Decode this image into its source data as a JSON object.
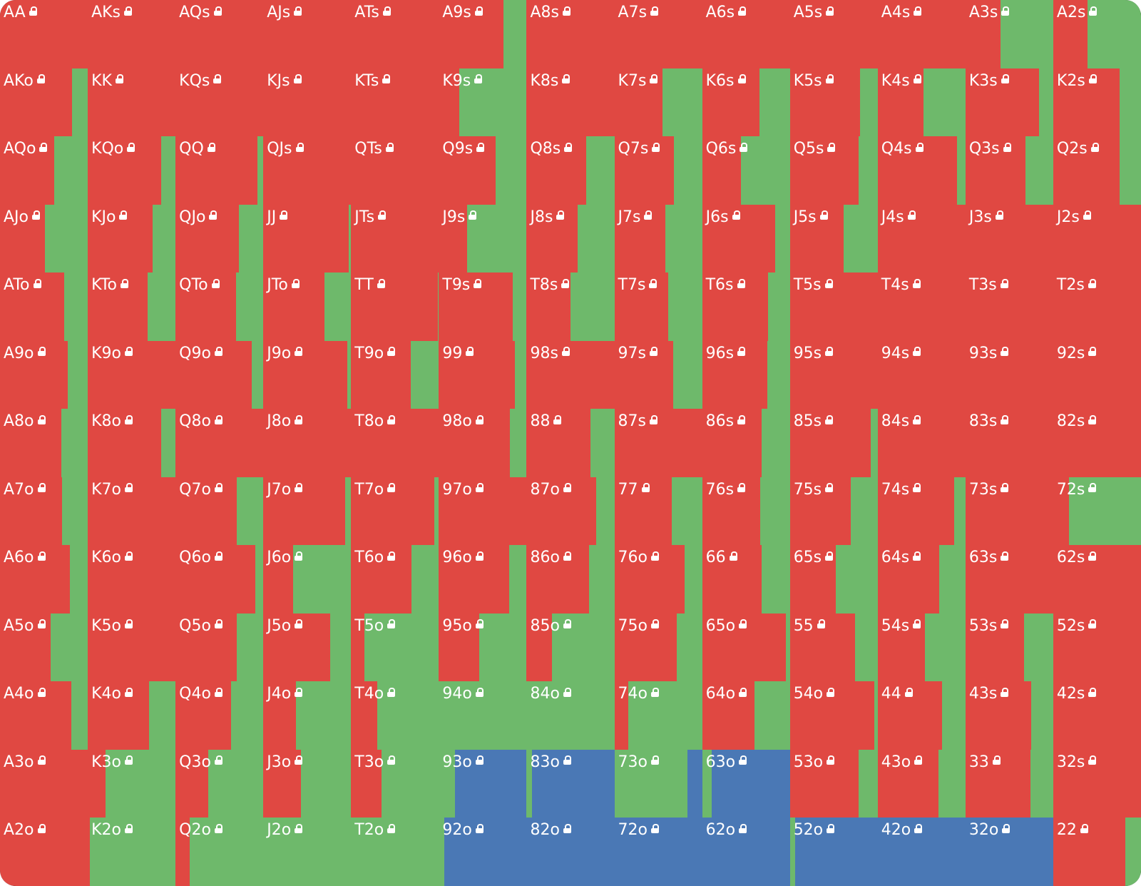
{
  "legend": {
    "action_colors": {
      "red": "#e04842",
      "green": "#6eb96b",
      "blue": "#4a78b5"
    }
  },
  "grid": {
    "cols": 13,
    "lock_icon": "lock-icon",
    "cells": [
      {
        "hand": "AA",
        "mix": [
          1,
          0,
          0
        ]
      },
      {
        "hand": "AKs",
        "mix": [
          1,
          0,
          0
        ]
      },
      {
        "hand": "AQs",
        "mix": [
          1,
          0,
          0
        ]
      },
      {
        "hand": "AJs",
        "mix": [
          1,
          0,
          0
        ]
      },
      {
        "hand": "ATs",
        "mix": [
          1,
          0,
          0
        ]
      },
      {
        "hand": "A9s",
        "mix": [
          0.74,
          0.26,
          0
        ]
      },
      {
        "hand": "A8s",
        "mix": [
          1,
          0,
          0
        ]
      },
      {
        "hand": "A7s",
        "mix": [
          1,
          0,
          0
        ]
      },
      {
        "hand": "A6s",
        "mix": [
          1,
          0,
          0
        ]
      },
      {
        "hand": "A5s",
        "mix": [
          1,
          0,
          0
        ]
      },
      {
        "hand": "A4s",
        "mix": [
          1,
          0,
          0
        ]
      },
      {
        "hand": "A3s",
        "mix": [
          0.4,
          0.6,
          0
        ]
      },
      {
        "hand": "A2s",
        "mix": [
          0.39,
          0.61,
          0
        ]
      },
      {
        "hand": "AKo",
        "mix": [
          0.82,
          0.18,
          0
        ]
      },
      {
        "hand": "KK",
        "mix": [
          1,
          0,
          0
        ]
      },
      {
        "hand": "KQs",
        "mix": [
          1,
          0,
          0
        ]
      },
      {
        "hand": "KJs",
        "mix": [
          1,
          0,
          0
        ]
      },
      {
        "hand": "KTs",
        "mix": [
          1,
          0,
          0
        ]
      },
      {
        "hand": "K9s",
        "mix": [
          0.23,
          0.77,
          0
        ]
      },
      {
        "hand": "K8s",
        "mix": [
          1,
          0,
          0
        ]
      },
      {
        "hand": "K7s",
        "mix": [
          0.55,
          0.45,
          0
        ]
      },
      {
        "hand": "K6s",
        "mix": [
          0.65,
          0.35,
          0
        ]
      },
      {
        "hand": "K5s",
        "mix": [
          0.8,
          0.2,
          0
        ]
      },
      {
        "hand": "K4s",
        "mix": [
          0.52,
          0.48,
          0
        ]
      },
      {
        "hand": "K3s",
        "mix": [
          0.84,
          0.16,
          0
        ]
      },
      {
        "hand": "K2s",
        "mix": [
          0.76,
          0.24,
          0
        ]
      },
      {
        "hand": "AQo",
        "mix": [
          0.62,
          0.38,
          0
        ]
      },
      {
        "hand": "KQo",
        "mix": [
          0.84,
          0.16,
          0
        ]
      },
      {
        "hand": "QQ",
        "mix": [
          0.93,
          0.07,
          0
        ]
      },
      {
        "hand": "QJs",
        "mix": [
          1,
          0,
          0
        ]
      },
      {
        "hand": "QTs",
        "mix": [
          1,
          0,
          0
        ]
      },
      {
        "hand": "Q9s",
        "mix": [
          0.65,
          0.35,
          0
        ]
      },
      {
        "hand": "Q8s",
        "mix": [
          0.68,
          0.32,
          0
        ]
      },
      {
        "hand": "Q7s",
        "mix": [
          0.68,
          0.32,
          0
        ]
      },
      {
        "hand": "Q6s",
        "mix": [
          0.44,
          0.56,
          0
        ]
      },
      {
        "hand": "Q5s",
        "mix": [
          0.78,
          0.22,
          0
        ]
      },
      {
        "hand": "Q4s",
        "mix": [
          0.9,
          0.1,
          0
        ]
      },
      {
        "hand": "Q3s",
        "mix": [
          0.68,
          0.32,
          0
        ]
      },
      {
        "hand": "Q2s",
        "mix": [
          0.76,
          0.24,
          0
        ]
      },
      {
        "hand": "AJo",
        "mix": [
          0.51,
          0.49,
          0
        ]
      },
      {
        "hand": "KJo",
        "mix": [
          0.74,
          0.26,
          0
        ]
      },
      {
        "hand": "QJo",
        "mix": [
          0.72,
          0.28,
          0
        ]
      },
      {
        "hand": "JJ",
        "mix": [
          0.97,
          0.03,
          0
        ]
      },
      {
        "hand": "JTs",
        "mix": [
          1,
          0,
          0
        ]
      },
      {
        "hand": "J9s",
        "mix": [
          0.32,
          0.68,
          0
        ]
      },
      {
        "hand": "J8s",
        "mix": [
          0.58,
          0.42,
          0
        ]
      },
      {
        "hand": "J7s",
        "mix": [
          0.58,
          0.42,
          0
        ]
      },
      {
        "hand": "J6s",
        "mix": [
          0.83,
          0.17,
          0
        ]
      },
      {
        "hand": "J5s",
        "mix": [
          0.61,
          0.39,
          0
        ]
      },
      {
        "hand": "J4s",
        "mix": [
          1,
          0,
          0
        ]
      },
      {
        "hand": "J3s",
        "mix": [
          1,
          0,
          0
        ]
      },
      {
        "hand": "J2s",
        "mix": [
          1,
          0,
          0
        ]
      },
      {
        "hand": "ATo",
        "mix": [
          0.73,
          0.27,
          0
        ]
      },
      {
        "hand": "KTo",
        "mix": [
          0.68,
          0.32,
          0
        ]
      },
      {
        "hand": "QTo",
        "mix": [
          0.69,
          0.31,
          0
        ]
      },
      {
        "hand": "JTo",
        "mix": [
          0.7,
          0.3,
          0
        ]
      },
      {
        "hand": "TT",
        "mix": [
          0.99,
          0.01,
          0
        ]
      },
      {
        "hand": "T9s",
        "mix": [
          0.84,
          0.16,
          0
        ]
      },
      {
        "hand": "T8s",
        "mix": [
          0.5,
          0.5,
          0
        ]
      },
      {
        "hand": "T7s",
        "mix": [
          0.61,
          0.39,
          0
        ]
      },
      {
        "hand": "T6s",
        "mix": [
          0.75,
          0.25,
          0
        ]
      },
      {
        "hand": "T5s",
        "mix": [
          1,
          0,
          0
        ]
      },
      {
        "hand": "T4s",
        "mix": [
          1,
          0,
          0
        ]
      },
      {
        "hand": "T3s",
        "mix": [
          1,
          0,
          0
        ]
      },
      {
        "hand": "T2s",
        "mix": [
          1,
          0,
          0
        ]
      },
      {
        "hand": "A9o",
        "mix": [
          0.77,
          0.23,
          0
        ]
      },
      {
        "hand": "K9o",
        "mix": [
          1,
          0,
          0
        ]
      },
      {
        "hand": "Q9o",
        "mix": [
          0.87,
          0.13,
          0
        ]
      },
      {
        "hand": "J9o",
        "mix": [
          0.96,
          0.04,
          0
        ]
      },
      {
        "hand": "T9o",
        "mix": [
          0.68,
          0.32,
          0
        ]
      },
      {
        "hand": "99",
        "mix": [
          0.87,
          0.13,
          0
        ]
      },
      {
        "hand": "98s",
        "mix": [
          1,
          0,
          0
        ]
      },
      {
        "hand": "97s",
        "mix": [
          0.67,
          0.33,
          0
        ]
      },
      {
        "hand": "96s",
        "mix": [
          0.74,
          0.26,
          0
        ]
      },
      {
        "hand": "95s",
        "mix": [
          1,
          0,
          0
        ]
      },
      {
        "hand": "94s",
        "mix": [
          1,
          0,
          0
        ]
      },
      {
        "hand": "93s",
        "mix": [
          1,
          0,
          0
        ]
      },
      {
        "hand": "92s",
        "mix": [
          1,
          0,
          0
        ]
      },
      {
        "hand": "A8o",
        "mix": [
          0.7,
          0.3,
          0
        ]
      },
      {
        "hand": "K8o",
        "mix": [
          0.84,
          0.16,
          0
        ]
      },
      {
        "hand": "Q8o",
        "mix": [
          1,
          0,
          0
        ]
      },
      {
        "hand": "J8o",
        "mix": [
          1,
          0,
          0
        ]
      },
      {
        "hand": "T8o",
        "mix": [
          1,
          0,
          0
        ]
      },
      {
        "hand": "98o",
        "mix": [
          0.81,
          0.19,
          0
        ]
      },
      {
        "hand": "88",
        "mix": [
          0.73,
          0.27,
          0
        ]
      },
      {
        "hand": "87s",
        "mix": [
          1,
          0,
          0
        ]
      },
      {
        "hand": "86s",
        "mix": [
          0.68,
          0.32,
          0
        ]
      },
      {
        "hand": "85s",
        "mix": [
          0.92,
          0.08,
          0
        ]
      },
      {
        "hand": "84s",
        "mix": [
          1,
          0,
          0
        ]
      },
      {
        "hand": "83s",
        "mix": [
          1,
          0,
          0
        ]
      },
      {
        "hand": "82s",
        "mix": [
          1,
          0,
          0
        ]
      },
      {
        "hand": "A7o",
        "mix": [
          0.71,
          0.29,
          0
        ]
      },
      {
        "hand": "K7o",
        "mix": [
          1,
          0,
          0
        ]
      },
      {
        "hand": "Q7o",
        "mix": [
          0.7,
          0.3,
          0
        ]
      },
      {
        "hand": "J7o",
        "mix": [
          0.93,
          0.07,
          0
        ]
      },
      {
        "hand": "T7o",
        "mix": [
          0.95,
          0.05,
          0
        ]
      },
      {
        "hand": "97o",
        "mix": [
          1,
          0,
          0
        ]
      },
      {
        "hand": "87o",
        "mix": [
          0.79,
          0.21,
          0
        ]
      },
      {
        "hand": "77",
        "mix": [
          0.65,
          0.35,
          0
        ]
      },
      {
        "hand": "76s",
        "mix": [
          0.66,
          0.34,
          0
        ]
      },
      {
        "hand": "75s",
        "mix": [
          0.69,
          0.31,
          0
        ]
      },
      {
        "hand": "74s",
        "mix": [
          0.87,
          0.13,
          0
        ]
      },
      {
        "hand": "73s",
        "mix": [
          1,
          0,
          0
        ]
      },
      {
        "hand": "72s",
        "mix": [
          0.18,
          0.82,
          0
        ]
      },
      {
        "hand": "A6o",
        "mix": [
          0.8,
          0.2,
          0
        ]
      },
      {
        "hand": "K6o",
        "mix": [
          1,
          0,
          0
        ]
      },
      {
        "hand": "Q6o",
        "mix": [
          0.91,
          0.09,
          0
        ]
      },
      {
        "hand": "J6o",
        "mix": [
          0.34,
          0.66,
          0
        ]
      },
      {
        "hand": "T6o",
        "mix": [
          0.69,
          0.31,
          0
        ]
      },
      {
        "hand": "96o",
        "mix": [
          0.8,
          0.2,
          0
        ]
      },
      {
        "hand": "86o",
        "mix": [
          0.71,
          0.29,
          0
        ]
      },
      {
        "hand": "76o",
        "mix": [
          0.8,
          0.2,
          0
        ]
      },
      {
        "hand": "66",
        "mix": [
          0.68,
          0.32,
          0
        ]
      },
      {
        "hand": "65s",
        "mix": [
          0.52,
          0.48,
          0
        ]
      },
      {
        "hand": "64s",
        "mix": [
          0.7,
          0.3,
          0
        ]
      },
      {
        "hand": "63s",
        "mix": [
          1,
          0,
          0
        ]
      },
      {
        "hand": "62s",
        "mix": [
          1,
          0,
          0
        ]
      },
      {
        "hand": "A5o",
        "mix": [
          0.58,
          0.42,
          0
        ]
      },
      {
        "hand": "K5o",
        "mix": [
          1,
          0,
          0
        ]
      },
      {
        "hand": "Q5o",
        "mix": [
          0.7,
          0.3,
          0
        ]
      },
      {
        "hand": "J5o",
        "mix": [
          0.76,
          0.24,
          0
        ]
      },
      {
        "hand": "T5o",
        "mix": [
          0.15,
          0.85,
          0
        ]
      },
      {
        "hand": "95o",
        "mix": [
          0.46,
          0.54,
          0
        ]
      },
      {
        "hand": "85o",
        "mix": [
          0.29,
          0.71,
          0
        ]
      },
      {
        "hand": "75o",
        "mix": [
          0.71,
          0.29,
          0
        ]
      },
      {
        "hand": "65o",
        "mix": [
          0.95,
          0.05,
          0
        ]
      },
      {
        "hand": "55",
        "mix": [
          0.74,
          0.26,
          0
        ]
      },
      {
        "hand": "54s",
        "mix": [
          0.54,
          0.46,
          0
        ]
      },
      {
        "hand": "53s",
        "mix": [
          0.67,
          0.33,
          0
        ]
      },
      {
        "hand": "52s",
        "mix": [
          1,
          0,
          0
        ]
      },
      {
        "hand": "A4o",
        "mix": [
          0.81,
          0.19,
          0
        ]
      },
      {
        "hand": "K4o",
        "mix": [
          0.7,
          0.3,
          0
        ]
      },
      {
        "hand": "Q4o",
        "mix": [
          0.63,
          0.37,
          0
        ]
      },
      {
        "hand": "J4o",
        "mix": [
          0.37,
          0.63,
          0
        ]
      },
      {
        "hand": "T4o",
        "mix": [
          0.3,
          0.7,
          0
        ]
      },
      {
        "hand": "94o",
        "mix": [
          0,
          1,
          0
        ]
      },
      {
        "hand": "84o",
        "mix": [
          0,
          1,
          0
        ]
      },
      {
        "hand": "74o",
        "mix": [
          0.16,
          0.84,
          0
        ]
      },
      {
        "hand": "64o",
        "mix": [
          0.6,
          0.4,
          0
        ]
      },
      {
        "hand": "54o",
        "mix": [
          0.96,
          0.04,
          0
        ]
      },
      {
        "hand": "44",
        "mix": [
          0.73,
          0.27,
          0
        ]
      },
      {
        "hand": "43s",
        "mix": [
          0.75,
          0.25,
          0
        ]
      },
      {
        "hand": "42s",
        "mix": [
          1,
          0,
          0
        ]
      },
      {
        "hand": "A3o",
        "mix": [
          1,
          0,
          0
        ]
      },
      {
        "hand": "K3o",
        "mix": [
          0.2,
          0.8,
          0
        ]
      },
      {
        "hand": "Q3o",
        "mix": [
          0.37,
          0.63,
          0
        ]
      },
      {
        "hand": "J3o",
        "mix": [
          0.43,
          0.57,
          0
        ]
      },
      {
        "hand": "T3o",
        "mix": [
          0.35,
          0.65,
          0
        ]
      },
      {
        "hand": "93o",
        "mix": [
          0,
          0.18,
          0.82
        ]
      },
      {
        "hand": "83o",
        "mix": [
          0,
          0.06,
          0.94
        ]
      },
      {
        "hand": "73o",
        "mix": [
          0,
          0.83,
          0.17
        ]
      },
      {
        "hand": "63o",
        "mix": [
          0,
          0.11,
          0.89
        ]
      },
      {
        "hand": "53o",
        "mix": [
          0.78,
          0.22,
          0
        ]
      },
      {
        "hand": "43o",
        "mix": [
          0.69,
          0.31,
          0
        ]
      },
      {
        "hand": "33",
        "mix": [
          0.74,
          0.26,
          0
        ]
      },
      {
        "hand": "32s",
        "mix": [
          1,
          0,
          0
        ]
      },
      {
        "hand": "A2o",
        "mix": [
          1,
          0,
          0
        ]
      },
      {
        "hand": "K2o",
        "mix": [
          0.02,
          0.98,
          0
        ]
      },
      {
        "hand": "Q2o",
        "mix": [
          0.16,
          0.84,
          0
        ]
      },
      {
        "hand": "J2o",
        "mix": [
          0,
          1,
          0
        ]
      },
      {
        "hand": "T2o",
        "mix": [
          0,
          1,
          0
        ]
      },
      {
        "hand": "92o",
        "mix": [
          0,
          0.06,
          0.94
        ]
      },
      {
        "hand": "82o",
        "mix": [
          0,
          0,
          1
        ]
      },
      {
        "hand": "72o",
        "mix": [
          0,
          0,
          1
        ]
      },
      {
        "hand": "62o",
        "mix": [
          0,
          0,
          1
        ]
      },
      {
        "hand": "52o",
        "mix": [
          0,
          0.06,
          0.94
        ]
      },
      {
        "hand": "42o",
        "mix": [
          0,
          0,
          1
        ]
      },
      {
        "hand": "32o",
        "mix": [
          0,
          0,
          1
        ]
      },
      {
        "hand": "22",
        "mix": [
          0.82,
          0.18,
          0
        ]
      }
    ]
  }
}
